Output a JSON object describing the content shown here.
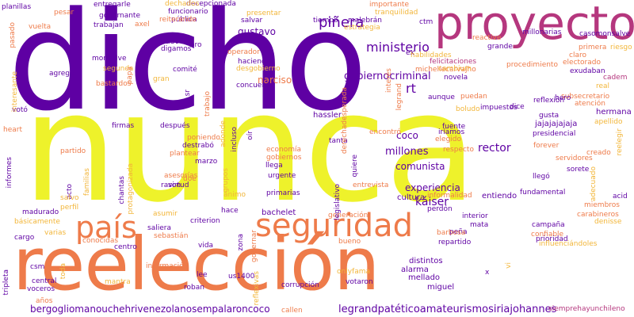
{
  "palette": {
    "purple": "#5e00a3",
    "magenta": "#b5377e",
    "orange": "#ee7b4a",
    "yellow": "#eef22b",
    "gold": "#f2b63a",
    "plum": "#7a1a9c"
  },
  "words": [
    "dicho",
    "nunca",
    "proyecto",
    "reelección",
    "país",
    "seguridad",
    "bergogliomanouchehrivenezolanosempalaroncoco",
    "legrandpatéticoamateurismosiriajohannes",
    "kast",
    "piñera",
    "ministerio",
    "gustavo",
    "narciso",
    "rt",
    "coco",
    "millones",
    "comunista",
    "rector",
    "experiencia",
    "káiser",
    "gobiernocriminal",
    "cultura",
    "entiendo",
    "bachelet",
    "importante",
    "tranquilidad",
    "millonarias",
    "casomonsalve",
    "reactive",
    "felicitaciones",
    "michellecarvajho",
    "procedimiento",
    "electorado",
    "exudaban",
    "cadem",
    "subsecretario",
    "atención",
    "hermana",
    "jajajajajaja",
    "presidencial",
    "creado",
    "forever",
    "servidores",
    "fundamental",
    "adecuado",
    "llegó",
    "sorete",
    "miembros",
    "acid",
    "carabineros",
    "denisse",
    "confiable",
    "prioridad",
    "influenciándoles",
    "siemprehayunchileno",
    "mellado",
    "miguel",
    "alarma",
    "distintos",
    "onlyfama",
    "votaron",
    "corrupción",
    "reflexivas",
    "us1400",
    "roban",
    "lee",
    "vida",
    "información",
    "centro",
    "conocidas",
    "sebastián",
    "saliera",
    "criterion",
    "hace",
    "asumir",
    "primarias",
    "ánimo",
    "virtud",
    "asesorías",
    "rason",
    "llega",
    "urgente",
    "gobiernos",
    "economía",
    "marzo",
    "plantear",
    "destrabó",
    "poniendo",
    "después",
    "firmas",
    "chantas",
    "acto",
    "partido",
    "heart",
    "informes",
    "madurado",
    "salvo",
    "perfil",
    "cargo",
    "básicamente",
    "varias",
    "tripleta",
    "csm",
    "central",
    "voceros",
    "toda",
    "mantra",
    "años",
    "callen",
    "planillas",
    "pesar",
    "entregarle",
    "gobernante",
    "trabajan",
    "axel",
    "funcionario",
    "decepcionada",
    "dechados",
    "pública",
    "reiterando",
    "salvar",
    "presentar",
    "tiempo",
    "malebrán",
    "estrategia",
    "ctm",
    "pasado",
    "vuelta",
    "segunda",
    "digamos",
    "oro",
    "operador",
    "monsalve",
    "hacienda",
    "concuerdo",
    "comité",
    "agrega",
    "bastardos",
    "desgobierno",
    "votó",
    "interesante",
    "hassler",
    "tanta",
    "encontró",
    "elegido",
    "iríamos",
    "respecto",
    "fuente",
    "generación",
    "interior",
    "mata",
    "campaña",
    "peña",
    "barbosa",
    "repartido",
    "bueno",
    "perdón",
    "informalidad",
    "entrevista",
    "quiere",
    "legislativo",
    "gobernar",
    "zona",
    "ex",
    "habilidades",
    "cambium",
    "novela",
    "real",
    "hero",
    "aunque",
    "puedan",
    "impuestos",
    "boludo",
    "dice",
    "gusta",
    "reflexión",
    "grande",
    "claro",
    "riesgo",
    "apellido",
    "reelegir",
    "primera",
    "interés",
    "legrand",
    "derechadesperada",
    "trabajo",
    "sr",
    "papá",
    "gran",
    "doe",
    "adonde",
    "incluso",
    "oír",
    "grupos",
    "protagonizada",
    "familias",
    "vi",
    "x"
  ]
}
